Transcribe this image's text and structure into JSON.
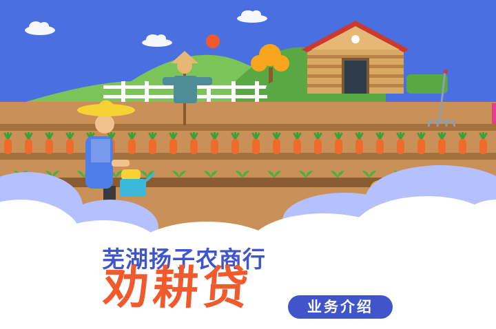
{
  "banner": {
    "company_name": "芜湖扬子农商行",
    "product_name": "劝耕贷",
    "tag_label": "业务介绍"
  },
  "colors": {
    "sky": "#4a6fe0",
    "hill": "#7cc35a",
    "soil": "#c99057",
    "carrot": "#f06a2c",
    "title_blue": "#3f55c9",
    "title_orange": "#f05a2c",
    "roof": "#cc3a2d",
    "coin": "#f7c531"
  },
  "icons": [
    "sun-icon",
    "cloud-icon",
    "scarecrow-icon",
    "house-icon",
    "rake-icon",
    "coin-icon",
    "watering-can-icon"
  ]
}
